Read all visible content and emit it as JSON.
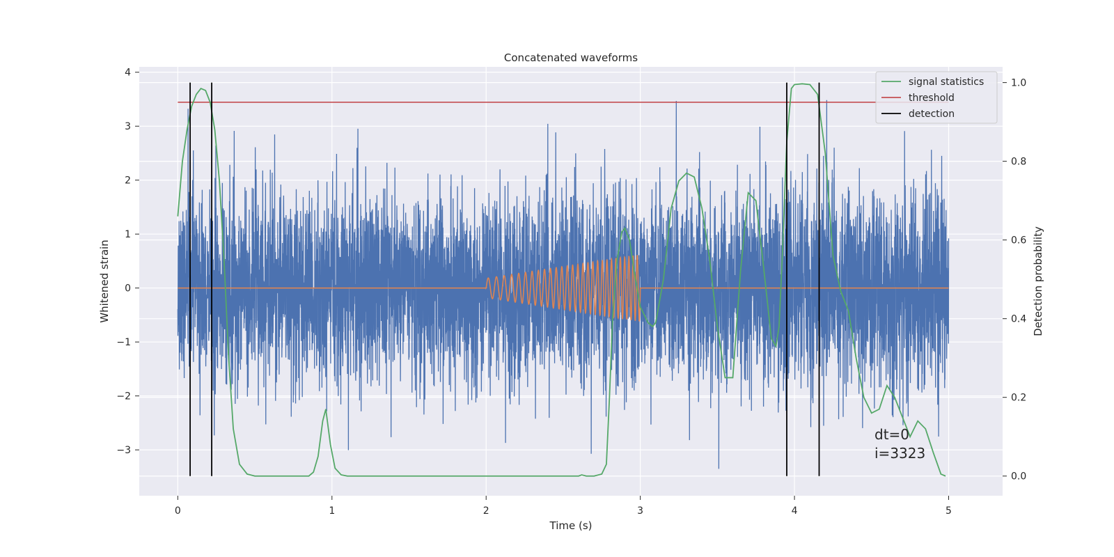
{
  "chart_data": {
    "type": "line",
    "title": "Concatenated waveforms",
    "xlabel": "Time (s)",
    "ylabel": "Whitened strain",
    "ylabel_right": "Detection probability",
    "xlim": [
      -0.25,
      5.35
    ],
    "ylim": [
      -3.85,
      4.1
    ],
    "ylim_right": [
      -0.05,
      1.04
    ],
    "x_ticks": [
      0,
      1,
      2,
      3,
      4,
      5
    ],
    "y_ticks": [
      -3,
      -2,
      -1,
      0,
      1,
      2,
      3,
      4
    ],
    "y_ticks_right": [
      0.0,
      0.2,
      0.4,
      0.6,
      0.8,
      1.0
    ],
    "grid": true,
    "legend_position": "top-right",
    "colors": {
      "background": "#eaeaf2",
      "grid": "#ffffff",
      "noise": "#4c72b0",
      "injection": "#dd8452",
      "signal": "#55a868",
      "threshold": "#c44e52",
      "detection": "#000000"
    },
    "series": [
      {
        "name": "strain",
        "axis": "left",
        "x_range": [
          0,
          5
        ],
        "amplitude_std": 0.9,
        "peak_abs": 3.7
      },
      {
        "name": "injected chirp",
        "axis": "left",
        "x_range": [
          2.0,
          3.0
        ],
        "envelope_start": 0.18,
        "envelope_end": 0.62,
        "freq_start_hz": 18,
        "freq_end_hz": 38
      },
      {
        "name": "signal statistics",
        "axis": "right",
        "x": [
          0.0,
          0.03,
          0.06,
          0.09,
          0.12,
          0.15,
          0.18,
          0.21,
          0.24,
          0.27,
          0.3,
          0.33,
          0.36,
          0.4,
          0.45,
          0.5,
          0.85,
          0.88,
          0.91,
          0.94,
          0.96,
          0.99,
          1.02,
          1.06,
          1.1,
          2.6,
          2.62,
          2.65,
          2.7,
          2.75,
          2.78,
          2.8,
          2.82,
          2.85,
          2.88,
          2.9,
          2.93,
          2.96,
          3.0,
          3.05,
          3.08,
          3.1,
          3.15,
          3.2,
          3.25,
          3.3,
          3.35,
          3.4,
          3.45,
          3.5,
          3.55,
          3.6,
          3.65,
          3.7,
          3.75,
          3.8,
          3.85,
          3.88,
          3.9,
          3.92,
          3.95,
          3.98,
          4.0,
          4.05,
          4.1,
          4.15,
          4.2,
          4.25,
          4.3,
          4.35,
          4.4,
          4.45,
          4.5,
          4.55,
          4.6,
          4.65,
          4.7,
          4.75,
          4.8,
          4.85,
          4.9,
          4.95,
          4.98
        ],
        "y": [
          0.66,
          0.8,
          0.88,
          0.94,
          0.97,
          0.985,
          0.98,
          0.95,
          0.88,
          0.75,
          0.55,
          0.3,
          0.12,
          0.03,
          0.005,
          0.0,
          0.0,
          0.01,
          0.05,
          0.14,
          0.17,
          0.08,
          0.02,
          0.003,
          0.0,
          0.0,
          0.003,
          0.0,
          0.0,
          0.005,
          0.03,
          0.2,
          0.4,
          0.55,
          0.62,
          0.63,
          0.6,
          0.52,
          0.43,
          0.39,
          0.38,
          0.39,
          0.5,
          0.68,
          0.75,
          0.77,
          0.76,
          0.68,
          0.55,
          0.38,
          0.25,
          0.25,
          0.52,
          0.72,
          0.7,
          0.53,
          0.35,
          0.33,
          0.38,
          0.55,
          0.85,
          0.985,
          0.995,
          0.997,
          0.995,
          0.97,
          0.82,
          0.56,
          0.47,
          0.42,
          0.3,
          0.2,
          0.16,
          0.17,
          0.23,
          0.2,
          0.15,
          0.1,
          0.14,
          0.12,
          0.06,
          0.005,
          0.0
        ]
      },
      {
        "name": "threshold",
        "axis": "right",
        "x": [
          0,
          5
        ],
        "y": [
          0.95,
          0.95
        ]
      },
      {
        "name": "detection",
        "axis": "right",
        "x_positions": [
          0.08,
          0.22,
          3.95,
          4.16
        ],
        "y_range": [
          0.0,
          1.0
        ]
      }
    ],
    "legend": [
      "signal statistics",
      "threshold",
      "detection"
    ],
    "annotations": [
      "dt=0",
      "i=3323"
    ]
  }
}
